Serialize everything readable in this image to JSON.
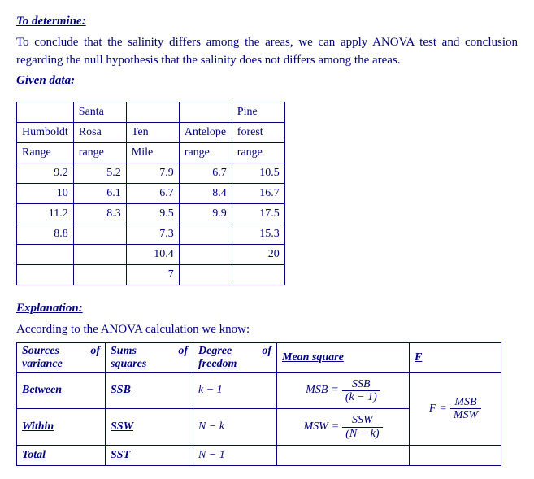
{
  "headings": {
    "to_determine": "To determine:",
    "given_data": "Given data:",
    "explanation": "Explanation:"
  },
  "text": {
    "intro": "To conclude that the salinity differs among the areas, we can apply ANOVA test and conclusion regarding the null hypothesis that the salinity does not differs among the areas.",
    "according": "According to the ANOVA calculation we know:"
  },
  "data_table": {
    "columns": [
      [
        "Humboldt",
        "Range"
      ],
      [
        "Santa",
        "Rosa",
        "range"
      ],
      [
        "Ten",
        "Mile"
      ],
      [
        "Antelope",
        "range"
      ],
      [
        "Pine",
        "forest",
        "range"
      ]
    ],
    "rows": [
      [
        "9.2",
        "5.2",
        "7.9",
        "6.7",
        "10.5"
      ],
      [
        "10",
        "6.1",
        "6.7",
        "8.4",
        "16.7"
      ],
      [
        "11.2",
        "8.3",
        "9.5",
        "9.9",
        "17.5"
      ],
      [
        "8.8",
        "",
        "7.3",
        "",
        "15.3"
      ],
      [
        "",
        "",
        "10.4",
        "",
        "20"
      ],
      [
        "",
        "",
        "7",
        "",
        ""
      ]
    ]
  },
  "anova": {
    "headers": {
      "sources": "Sources",
      "variance": "variance",
      "sums": "Sums",
      "squares": "squares",
      "degree": "Degree",
      "freedom": "freedom",
      "mean_square": "Mean square",
      "F": "F",
      "of": "of"
    },
    "rows": {
      "between": {
        "label": "Between",
        "ss": "SSB",
        "df": "k − 1"
      },
      "within": {
        "label": "Within",
        "ss": "SSW",
        "df": "N − k"
      },
      "total": {
        "label": "Total",
        "ss": "SST",
        "df": "N − 1"
      }
    },
    "formulas": {
      "msb_lhs": "MSB",
      "msb_num": "SSB",
      "msb_den": "(k − 1)",
      "msw_lhs": "MSW",
      "msw_num": "SSW",
      "msw_den": "(N − k)",
      "f_lhs": "F",
      "f_num": "MSB",
      "f_den": "MSW",
      "eq": " = "
    }
  }
}
